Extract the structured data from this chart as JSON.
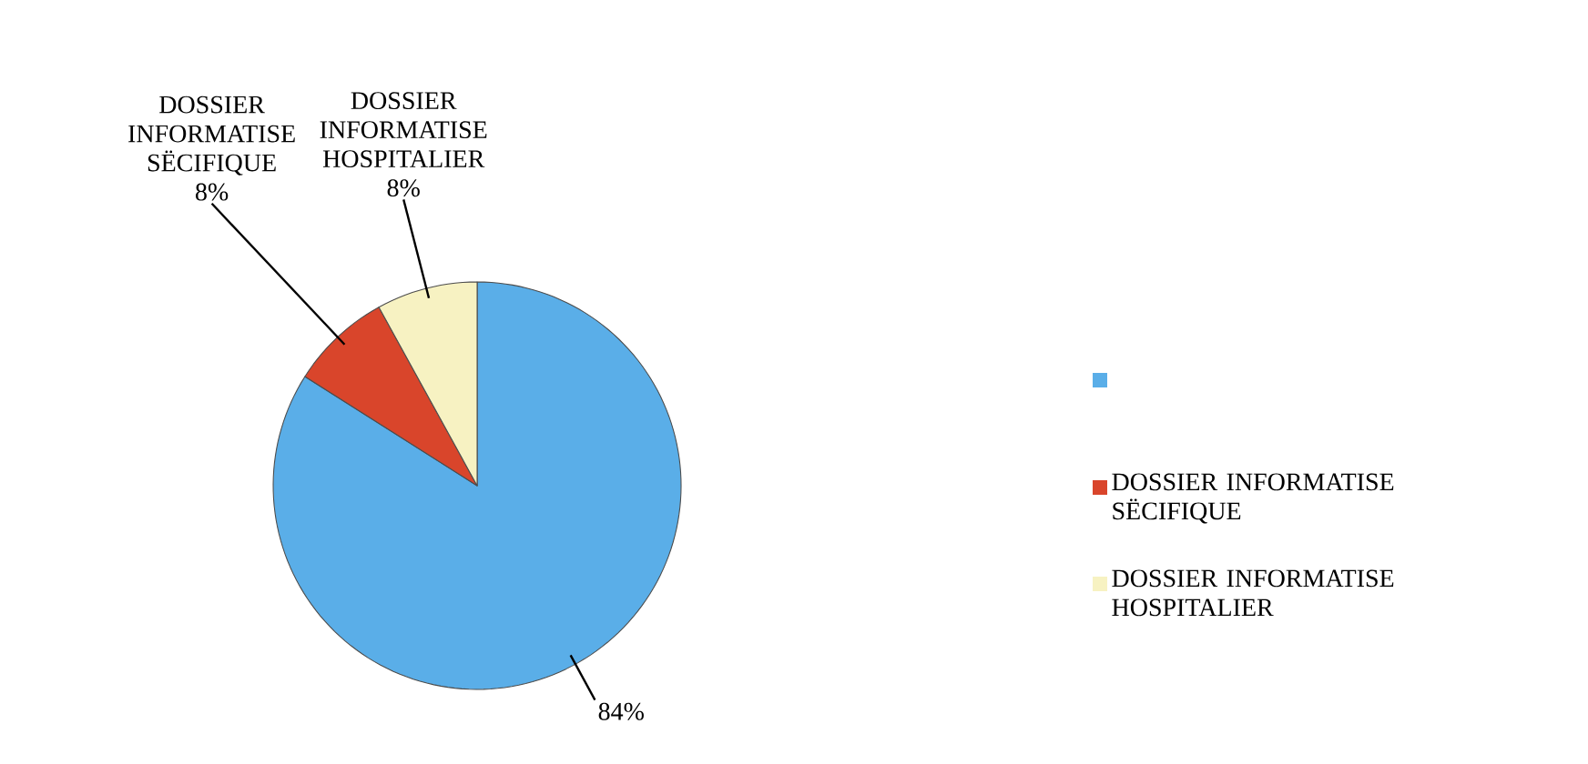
{
  "chart_data": {
    "type": "pie",
    "categories": [
      null,
      "DOSSIER INFORMATISE SËCIFIQUE",
      "DOSSIER INFORMATISE HOSPITALIER"
    ],
    "values": [
      84,
      8,
      8
    ],
    "value_labels": [
      "84%",
      "8%",
      "8%"
    ],
    "colors": [
      "#5aaee8",
      "#d9452b",
      "#f7f2c2"
    ],
    "legend": "right"
  }
}
